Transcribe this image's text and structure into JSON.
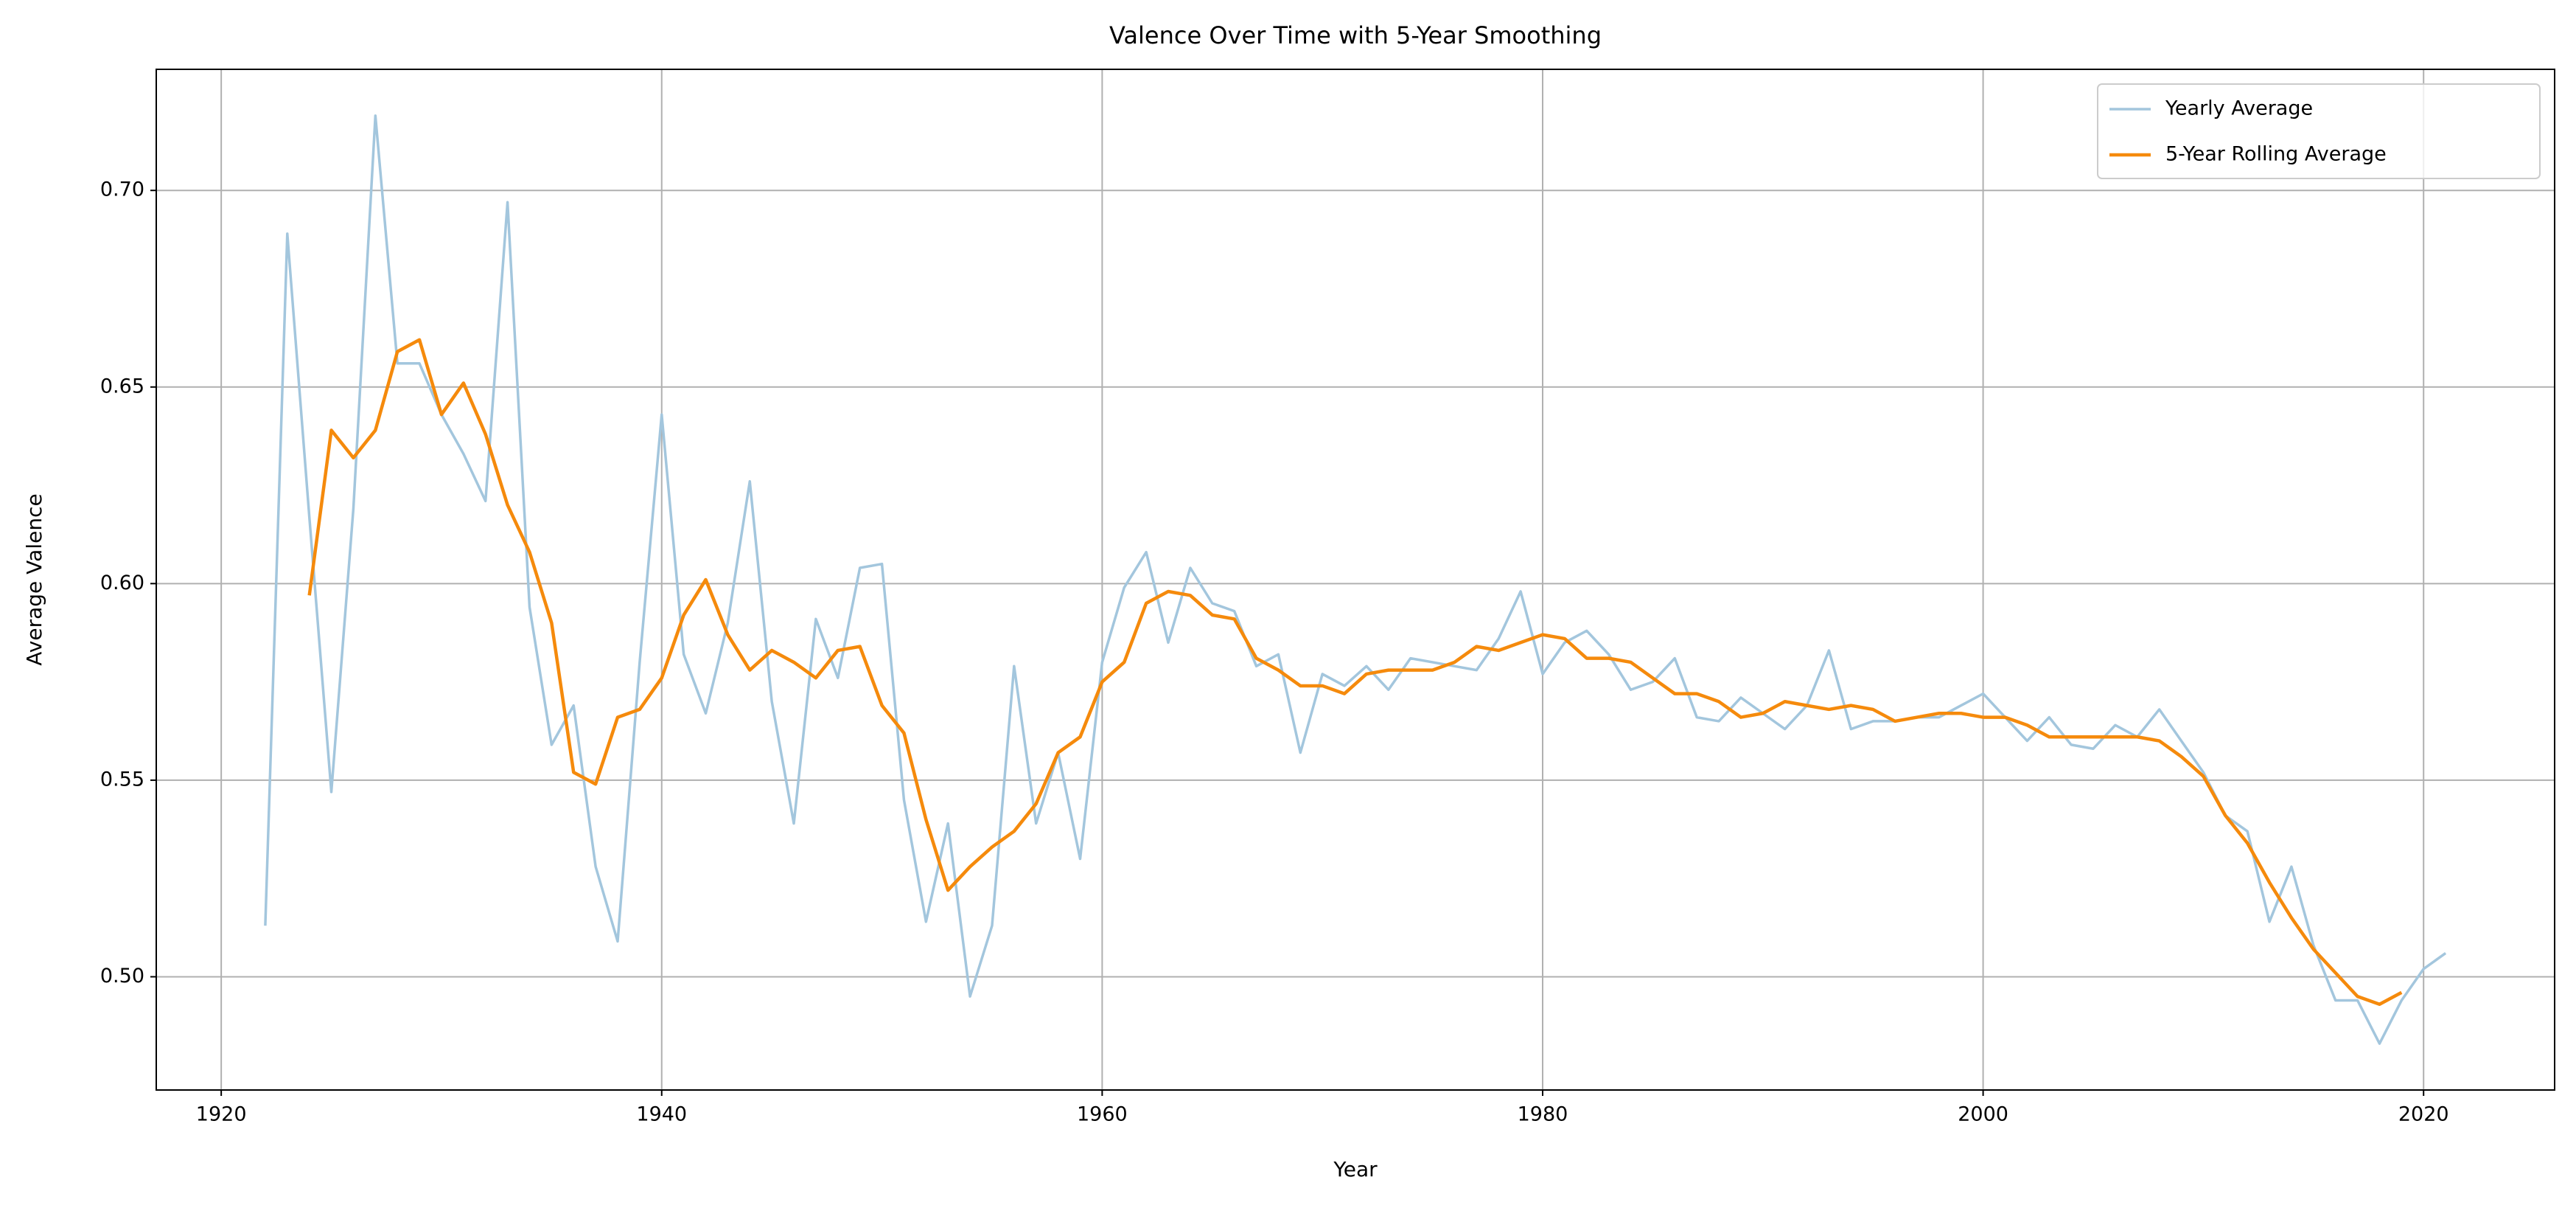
{
  "chart_data": {
    "type": "line",
    "title": "Valence Over Time with 5-Year Smoothing",
    "x_label": "Year",
    "y_label": "Average Valence",
    "x": [
      1922,
      1923,
      1924,
      1925,
      1926,
      1927,
      1928,
      1929,
      1930,
      1931,
      1932,
      1933,
      1934,
      1935,
      1936,
      1937,
      1938,
      1939,
      1940,
      1941,
      1942,
      1943,
      1944,
      1945,
      1946,
      1947,
      1948,
      1949,
      1950,
      1951,
      1952,
      1953,
      1954,
      1955,
      1956,
      1957,
      1958,
      1959,
      1960,
      1961,
      1962,
      1963,
      1964,
      1965,
      1966,
      1967,
      1968,
      1969,
      1970,
      1971,
      1972,
      1973,
      1974,
      1975,
      1976,
      1977,
      1978,
      1979,
      1980,
      1981,
      1982,
      1983,
      1984,
      1985,
      1986,
      1987,
      1988,
      1989,
      1990,
      1991,
      1992,
      1993,
      1994,
      1995,
      1996,
      1997,
      1998,
      1999,
      2000,
      2001,
      2002,
      2003,
      2004,
      2005,
      2006,
      2007,
      2008,
      2009,
      2010,
      2011,
      2012,
      2013,
      2014,
      2015,
      2016,
      2017,
      2018,
      2019,
      2020,
      2021
    ],
    "series": [
      {
        "name": "Yearly Average",
        "color": "#a3c6dd",
        "values": [
          0.513,
          0.689,
          0.617,
          0.547,
          0.619,
          0.719,
          0.656,
          0.656,
          0.643,
          0.633,
          0.621,
          0.697,
          0.594,
          0.559,
          0.569,
          0.528,
          0.509,
          0.58,
          0.643,
          0.582,
          0.567,
          0.59,
          0.626,
          0.57,
          0.539,
          0.591,
          0.576,
          0.604,
          0.605,
          0.545,
          0.514,
          0.539,
          0.495,
          0.513,
          0.579,
          0.539,
          0.557,
          0.53,
          0.58,
          0.599,
          0.608,
          0.585,
          0.604,
          0.595,
          0.593,
          0.579,
          0.582,
          0.557,
          0.577,
          0.574,
          0.579,
          0.573,
          0.581,
          0.58,
          0.579,
          0.578,
          0.586,
          0.598,
          0.577,
          0.585,
          0.588,
          0.582,
          0.573,
          0.575,
          0.581,
          0.566,
          0.565,
          0.571,
          0.567,
          0.563,
          0.569,
          0.583,
          0.563,
          0.565,
          0.565,
          0.566,
          0.566,
          0.569,
          0.572,
          0.566,
          0.56,
          0.566,
          0.559,
          0.558,
          0.564,
          0.561,
          0.568,
          0.56,
          0.552,
          0.541,
          0.537,
          0.514,
          0.528,
          0.508,
          0.494,
          0.494,
          0.483,
          0.494,
          0.502,
          0.506
        ]
      },
      {
        "name": "5-Year Rolling Average",
        "color": "#f58a0c",
        "values": [
          null,
          null,
          0.597,
          0.639,
          0.632,
          0.639,
          0.659,
          0.662,
          0.643,
          0.651,
          0.638,
          0.62,
          0.608,
          0.59,
          0.552,
          0.549,
          0.566,
          0.568,
          0.576,
          0.592,
          0.601,
          0.587,
          0.578,
          0.583,
          0.58,
          0.576,
          0.583,
          0.584,
          0.569,
          0.562,
          0.54,
          0.522,
          0.528,
          0.533,
          0.537,
          0.544,
          0.557,
          0.561,
          0.575,
          0.58,
          0.595,
          0.598,
          0.597,
          0.592,
          0.591,
          0.581,
          0.578,
          0.574,
          0.574,
          0.572,
          0.577,
          0.578,
          0.578,
          0.578,
          0.58,
          0.584,
          0.583,
          0.585,
          0.587,
          0.586,
          0.581,
          0.581,
          0.58,
          0.576,
          0.572,
          0.572,
          0.57,
          0.566,
          0.567,
          0.57,
          0.569,
          0.568,
          0.569,
          0.568,
          0.565,
          0.566,
          0.567,
          0.567,
          0.566,
          0.566,
          0.564,
          0.561,
          0.561,
          0.561,
          0.561,
          0.561,
          0.56,
          0.556,
          0.551,
          0.541,
          0.534,
          0.524,
          0.515,
          0.507,
          0.501,
          0.495,
          0.493,
          0.496,
          null,
          null
        ]
      }
    ],
    "xlim": [
      1917.05,
      2025.95
    ],
    "xticks": [
      1920,
      1940,
      1960,
      1980,
      2000,
      2020
    ],
    "ylim": [
      0.4712,
      0.7308
    ],
    "yticks": [
      {
        "value": 0.5,
        "label": "0.50"
      },
      0.55,
      {
        "value": 0.6,
        "label": "0.60"
      },
      0.65,
      {
        "value": 0.7,
        "label": "0.70"
      }
    ],
    "grid": true,
    "legend": "upper right"
  }
}
